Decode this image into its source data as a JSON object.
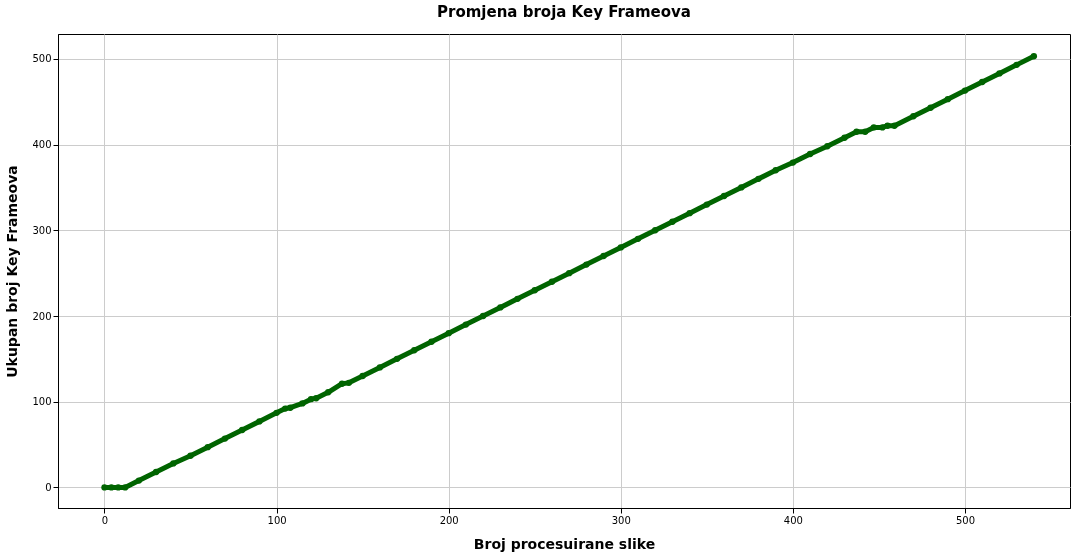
{
  "chart_data": {
    "type": "line",
    "title": "Promjena broja Key Frameova",
    "xlabel": "Broj procesuirane slike",
    "ylabel": "Ukupan broj Key Frameova",
    "series": [
      {
        "color": "#006400",
        "x": [
          0,
          4,
          8,
          12,
          20,
          30,
          40,
          50,
          60,
          70,
          80,
          90,
          100,
          105,
          108,
          115,
          120,
          123,
          130,
          138,
          142,
          150,
          160,
          170,
          180,
          190,
          200,
          210,
          220,
          230,
          240,
          250,
          260,
          270,
          280,
          290,
          300,
          310,
          320,
          330,
          340,
          350,
          360,
          370,
          380,
          390,
          400,
          410,
          420,
          430,
          437,
          442,
          447,
          452,
          455,
          459,
          470,
          480,
          490,
          500,
          510,
          520,
          530,
          540
        ],
        "values": [
          0,
          0,
          0,
          0,
          8,
          18,
          28,
          37,
          47,
          57,
          67,
          77,
          87,
          92,
          93,
          98,
          103,
          104,
          111,
          121,
          122,
          130,
          140,
          150,
          160,
          170,
          180,
          190,
          200,
          210,
          220,
          230,
          240,
          250,
          260,
          270,
          280,
          290,
          300,
          310,
          320,
          330,
          340,
          350,
          360,
          370,
          379,
          389,
          398,
          408,
          415,
          415,
          420,
          420,
          422,
          422,
          433,
          443,
          453,
          463,
          473,
          483,
          493,
          503
        ]
      }
    ],
    "xlim": [
      -27,
      561
    ],
    "ylim": [
      -24,
      529
    ],
    "xticks": [
      0,
      100,
      200,
      300,
      400,
      500
    ],
    "yticks": [
      0,
      100,
      200,
      300,
      400,
      500
    ],
    "grid": true,
    "marker": "circle",
    "line_style": "solid"
  }
}
